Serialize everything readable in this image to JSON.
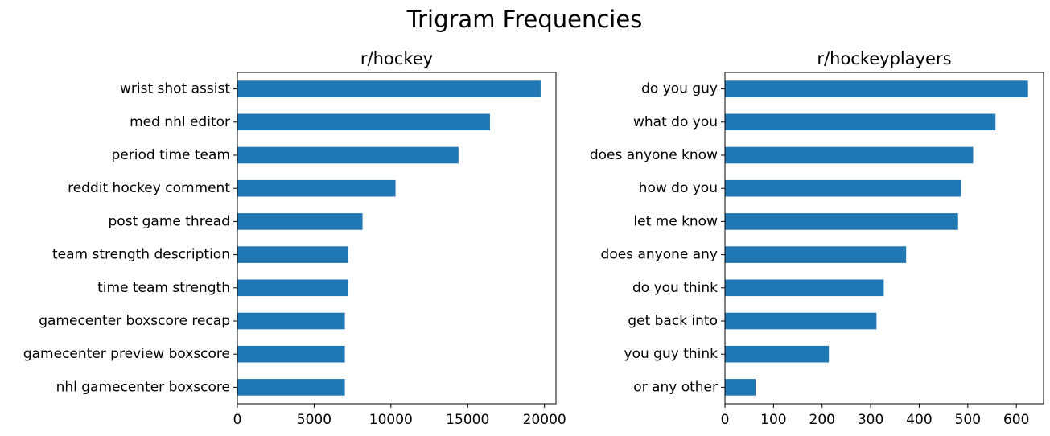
{
  "figure_title": "Trigram Frequencies",
  "chart_data": [
    {
      "type": "bar",
      "orientation": "horizontal",
      "title": "r/hockey",
      "xlabel": "",
      "ylabel": "",
      "categories": [
        "wrist shot assist",
        "med nhl editor",
        "period time team",
        "reddit hockey comment",
        "post game thread",
        "team strength description",
        "time team strength",
        "gamecenter boxscore recap",
        "gamecenter preview boxscore",
        "nhl gamecenter boxscore"
      ],
      "values": [
        19750,
        16450,
        14400,
        10300,
        8150,
        7200,
        7200,
        7000,
        7000,
        7000
      ],
      "xlim": [
        0,
        20750
      ],
      "xticks": [
        0,
        5000,
        10000,
        15000,
        20000
      ],
      "color": "#1f77b4",
      "grid": false
    },
    {
      "type": "bar",
      "orientation": "horizontal",
      "title": "r/hockeyplayers",
      "xlabel": "",
      "ylabel": "",
      "categories": [
        "do you guy",
        "what do you",
        "does anyone know",
        "how do you",
        "let me know",
        "does anyone any",
        "do you think",
        "get back into",
        "you guy think",
        "or any other"
      ],
      "values": [
        624,
        557,
        511,
        486,
        480,
        373,
        327,
        312,
        214,
        63
      ],
      "xlim": [
        0,
        656
      ],
      "xticks": [
        0,
        100,
        200,
        300,
        400,
        500,
        600
      ],
      "color": "#1f77b4",
      "grid": false
    }
  ]
}
